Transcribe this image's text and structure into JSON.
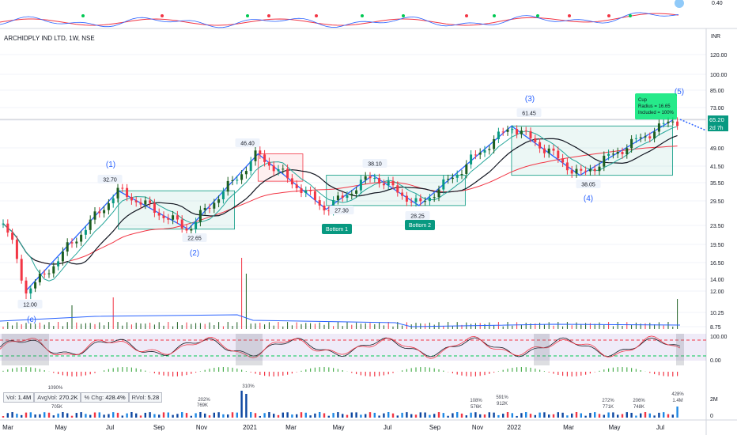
{
  "chart_data": {
    "type": "candlestick",
    "title": "ARCHIDPLY IND LTD, 1W, NSE",
    "currency": "INR",
    "price_scale_labels": [
      "120.00",
      "100.00",
      "85.00",
      "73.00",
      "65.20",
      "49.00",
      "41.50",
      "35.50",
      "29.50",
      "23.50",
      "19.50",
      "16.50",
      "14.00",
      "12.00",
      "10.25",
      "8.75"
    ],
    "price_scale_values": [
      120,
      100,
      85,
      73,
      65.2,
      49,
      41.5,
      35.5,
      29.5,
      23.5,
      19.5,
      16.5,
      14,
      12,
      10.25,
      8.75
    ],
    "oscillator_scale_labels": [
      "100.00",
      "0.00"
    ],
    "top_scale_label": "0.40",
    "volume_scale_labels": [
      "2M",
      "0"
    ],
    "x_axis_labels": [
      "Mar",
      "May",
      "Jul",
      "Sep",
      "Nov",
      "2021",
      "Mar",
      "May",
      "Jul",
      "Sep",
      "Nov",
      "2022",
      "Mar",
      "May",
      "Jul"
    ],
    "last_price": "65.20",
    "countdown": "2d 7h",
    "price_annotations": [
      "12.00",
      "32.70",
      "22.65",
      "46.40",
      "27.30",
      "38.10",
      "28.25",
      "61.45",
      "38.05"
    ],
    "wave_labels": [
      "(c)",
      "(1)",
      "(2)",
      "(3)",
      "(4)",
      "(5)"
    ],
    "pattern_labels": [
      "Bottom 1",
      "Bottom 2"
    ],
    "cup_box": [
      "Cup",
      "Radius = 16.65",
      "Included = 100%"
    ],
    "volume_stats": {
      "vol_label": "Vol:",
      "vol": "1.4M",
      "avgvol_label": "AvgVol:",
      "avgvol": "270.2K",
      "chg_label": "% Chg:",
      "chg": "428.4%",
      "rvol_label": "RVol:",
      "rvol": "5.28"
    },
    "volume_annotations": [
      "705K",
      "1090%",
      "202%",
      "769K",
      "310%",
      "108%",
      "576K",
      "591%",
      "912K",
      "272%",
      "771K",
      "206%",
      "748K",
      "428%",
      "1.4M"
    ],
    "pivots": [
      {
        "x": "2020-03",
        "y": 12.0
      },
      {
        "x": "2020-07",
        "y": 32.7
      },
      {
        "x": "2020-10",
        "y": 22.65
      },
      {
        "x": "2021-01",
        "y": 46.4
      },
      {
        "x": "2021-04",
        "y": 27.3
      },
      {
        "x": "2021-06",
        "y": 38.1
      },
      {
        "x": "2021-08",
        "y": 28.25
      },
      {
        "x": "2021-12",
        "y": 61.45
      },
      {
        "x": "2022-03",
        "y": 38.05
      },
      {
        "x": "2022-07",
        "y": 65.2
      }
    ],
    "colors": {
      "up": "#089981",
      "up_dark": "#1b5e20",
      "down": "#f23645",
      "wave": "#2962ff",
      "ma_long": "#f23645",
      "ma_mid": "#131722",
      "ma_fast": "#26a69a",
      "green_label": "#089981"
    }
  }
}
